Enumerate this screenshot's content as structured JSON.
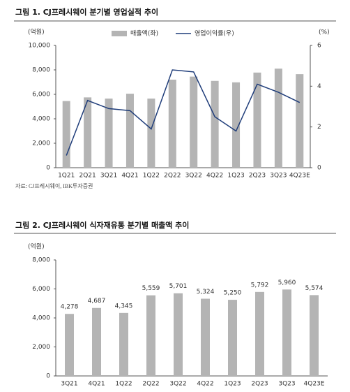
{
  "chart_data": [
    {
      "type": "combo",
      "title": "그림 1. CJ프레시웨이 분기별 영업실적 추이",
      "y_unit": "(억원)",
      "y2_unit": "(%)",
      "source": "자료: CJ프레시웨이, IBK투자증권",
      "categories": [
        "1Q21",
        "2Q21",
        "3Q21",
        "4Q21",
        "1Q22",
        "2Q22",
        "3Q22",
        "4Q22",
        "1Q23",
        "2Q23",
        "3Q23",
        "4Q23E"
      ],
      "series": [
        {
          "name": "매출액(좌)",
          "kind": "bar",
          "color": "#b4b4b4",
          "values": [
            5450,
            5750,
            5650,
            6050,
            5650,
            7200,
            7450,
            7100,
            6980,
            7780,
            8100,
            7650
          ]
        },
        {
          "name": "영업이익률(우)",
          "kind": "line",
          "axis": "y2",
          "color": "#1f3d7a",
          "values": [
            0.6,
            3.3,
            2.9,
            2.8,
            1.9,
            4.8,
            4.7,
            2.5,
            1.8,
            4.1,
            3.7,
            3.2
          ]
        }
      ],
      "ylim": [
        0,
        10000
      ],
      "yticks": [
        0,
        {
          "value": 2000,
          "label": "2,000"
        },
        {
          "value": 4000,
          "label": "4,000"
        },
        {
          "value": 6000,
          "label": "6,000"
        },
        {
          "value": 8000,
          "label": "8,000"
        },
        {
          "value": 10000,
          "label": "10,000"
        }
      ],
      "y2lim": [
        0,
        6
      ],
      "y2ticks": [
        0,
        2,
        4,
        6
      ]
    },
    {
      "type": "bar",
      "title": "그림 2. CJ프레시웨이 식자재유통 분기별 매출액 추이",
      "y_unit": "(억원)",
      "categories": [
        "3Q21",
        "4Q21",
        "1Q22",
        "2Q22",
        "3Q22",
        "4Q22",
        "1Q23",
        "2Q23",
        "3Q23",
        "4Q23E"
      ],
      "values": [
        4278,
        4687,
        4345,
        5559,
        5701,
        5324,
        5250,
        5792,
        5960,
        5574
      ],
      "value_labels": [
        "4,278",
        "4,687",
        "4,345",
        "5,559",
        "5,701",
        "5,324",
        "5,250",
        "5,792",
        "5,960",
        "5,574"
      ],
      "color": "#b4b4b4",
      "ylim": [
        0,
        8000
      ],
      "yticks": [
        0,
        {
          "value": 2000,
          "label": "2,000"
        },
        {
          "value": 4000,
          "label": "4,000"
        },
        {
          "value": 6000,
          "label": "6,000"
        },
        {
          "value": 8000,
          "label": "8,000"
        }
      ]
    }
  ]
}
